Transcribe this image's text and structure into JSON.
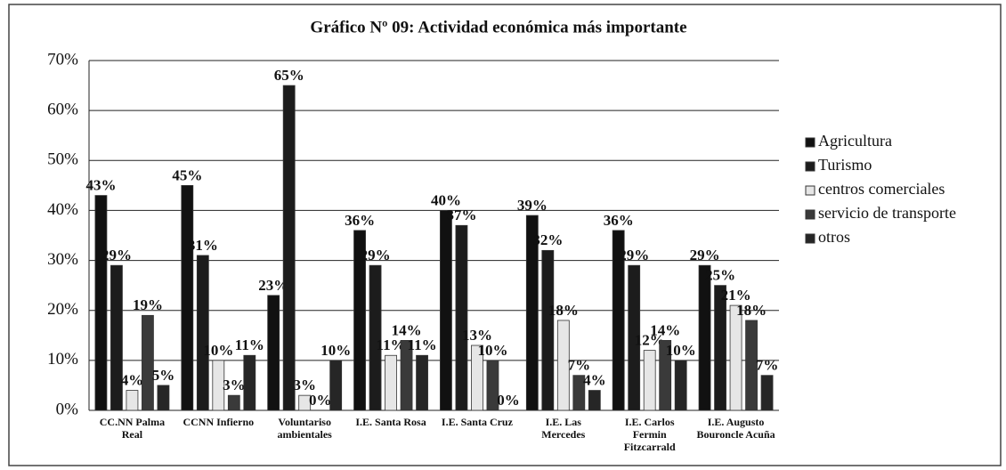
{
  "chart_data": {
    "type": "bar",
    "title": "Gráfico Nº 09: Actividad económica más importante",
    "categories": [
      "CC.NN Palma Real",
      "CCNN Infierno",
      "Voluntariso ambientales",
      "I.E. Santa Rosa",
      "I.E. Santa Cruz",
      "I.E. Las Mercedes",
      "I.E. Carlos Fermin Fitzcarrald",
      "I.E. Augusto Bouroncle Acuña"
    ],
    "series": [
      {
        "name": "Agricultura",
        "color": "#111111",
        "values": [
          43,
          45,
          23,
          36,
          40,
          39,
          36,
          29
        ],
        "value_labels": [
          "43%",
          "45%",
          "23%",
          "36%",
          "40%",
          "39%",
          "36%",
          "29%"
        ]
      },
      {
        "name": "Turismo",
        "color": "#1c1c1c",
        "values": [
          29,
          31,
          65,
          29,
          37,
          32,
          29,
          25
        ],
        "value_labels": [
          "29%",
          "31%",
          "65%",
          "29%",
          "37%",
          "32%",
          "29%",
          "25%"
        ]
      },
      {
        "name": "centros comerciales",
        "color": "#e6e6e6",
        "values": [
          4,
          10,
          3,
          11,
          13,
          18,
          12,
          21
        ],
        "value_labels": [
          "4%",
          "10%",
          "3%",
          "11%",
          "13%",
          "18%",
          "12%",
          "21%"
        ]
      },
      {
        "name": "servicio de transporte",
        "color": "#3a3a3a",
        "values": [
          19,
          3,
          0,
          14,
          10,
          7,
          14,
          18
        ],
        "value_labels": [
          "19%",
          "3%",
          "0%",
          "14%",
          "10%",
          "7%",
          "14%",
          "18%"
        ]
      },
      {
        "name": "otros",
        "color": "#262626",
        "values": [
          5,
          11,
          10,
          11,
          0,
          4,
          10,
          7
        ],
        "value_labels": [
          "5%",
          "11%",
          "10%",
          "11%",
          "0%",
          "4%",
          "10%",
          "7%"
        ]
      }
    ],
    "ylim": [
      0,
      70
    ],
    "yticks": [
      {
        "value": 0,
        "label": "0%"
      },
      {
        "value": 10,
        "label": "10%"
      },
      {
        "value": 20,
        "label": "20%"
      },
      {
        "value": 30,
        "label": "30%"
      },
      {
        "value": 40,
        "label": "40%"
      },
      {
        "value": 50,
        "label": "50%"
      },
      {
        "value": 60,
        "label": "60%"
      },
      {
        "value": 70,
        "label": "70%"
      }
    ],
    "grid": true,
    "legend": "right"
  }
}
